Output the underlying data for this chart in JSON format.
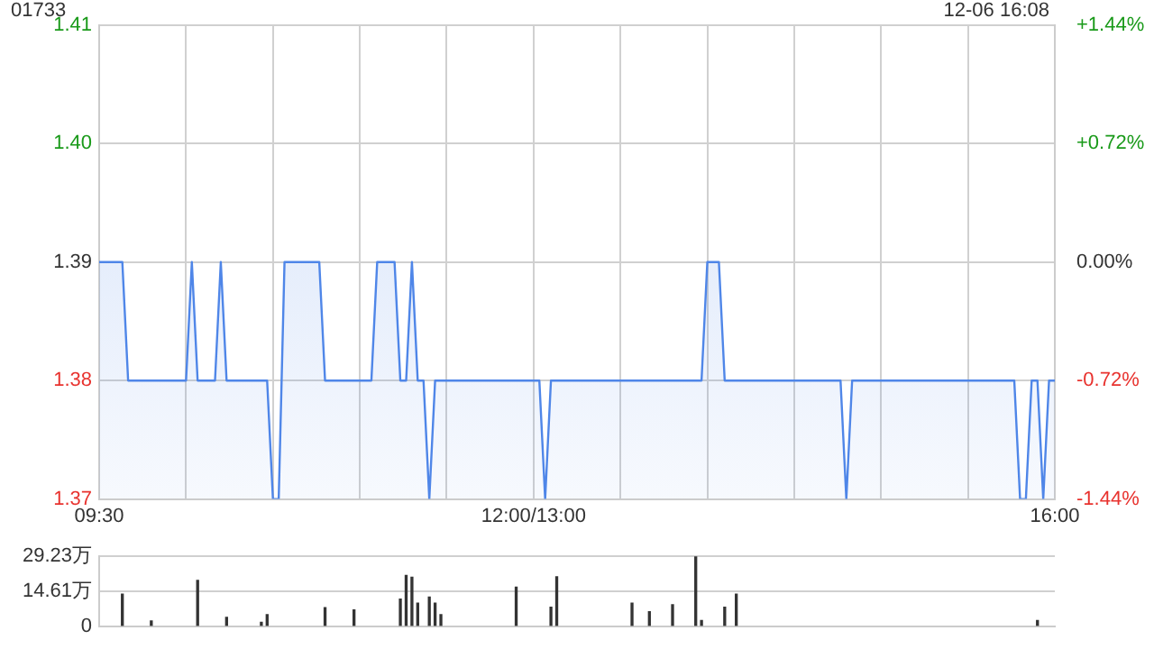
{
  "chart_data": [
    {
      "type": "area",
      "title": "01733",
      "subtitle": "12-06 16:08",
      "categories": [
        "09:30",
        null,
        null,
        null,
        null,
        null,
        null,
        null,
        null,
        null,
        null,
        null,
        null,
        null,
        null,
        null,
        null,
        null,
        null,
        null,
        null,
        null,
        null,
        null,
        null,
        null,
        null,
        null,
        null,
        null,
        null,
        null,
        null,
        null,
        null,
        null,
        null,
        null,
        null,
        null,
        null,
        null,
        null,
        null,
        null,
        null,
        null,
        null,
        null,
        null,
        null,
        null,
        null,
        null,
        null,
        null,
        null,
        null,
        null,
        null,
        null,
        null,
        null,
        null,
        null,
        null,
        null,
        null,
        null,
        null,
        null,
        null,
        null,
        null,
        null,
        "12:00/13:00",
        null,
        null,
        null,
        null,
        null,
        null,
        null,
        null,
        null,
        null,
        null,
        null,
        null,
        null,
        null,
        null,
        null,
        null,
        null,
        null,
        null,
        null,
        null,
        null,
        null,
        null,
        null,
        null,
        null,
        null,
        null,
        null,
        null,
        null,
        null,
        null,
        null,
        null,
        null,
        null,
        null,
        null,
        null,
        null,
        null,
        null,
        null,
        null,
        null,
        null,
        null,
        null,
        null,
        null,
        null,
        null,
        null,
        null,
        null,
        null,
        null,
        null,
        null,
        null,
        null,
        null,
        null,
        null,
        null,
        null,
        null,
        null,
        null,
        null,
        null,
        null,
        null,
        null,
        null,
        null,
        null,
        null,
        null,
        null,
        null,
        null,
        null,
        null,
        null,
        "16:00"
      ],
      "series": [
        {
          "color": "#4f86e8",
          "values": [
            1.39,
            1.39,
            1.39,
            1.39,
            1.39,
            1.38,
            1.38,
            1.38,
            1.38,
            1.38,
            1.38,
            1.38,
            1.38,
            1.38,
            1.38,
            1.38,
            1.39,
            1.38,
            1.38,
            1.38,
            1.38,
            1.39,
            1.38,
            1.38,
            1.38,
            1.38,
            1.38,
            1.38,
            1.38,
            1.38,
            1.37,
            1.37,
            1.39,
            1.39,
            1.39,
            1.39,
            1.39,
            1.39,
            1.39,
            1.38,
            1.38,
            1.38,
            1.38,
            1.38,
            1.38,
            1.38,
            1.38,
            1.38,
            1.39,
            1.39,
            1.39,
            1.39,
            1.38,
            1.38,
            1.39,
            1.38,
            1.38,
            1.37,
            1.38,
            1.38,
            1.38,
            1.38,
            1.38,
            1.38,
            1.38,
            1.38,
            1.38,
            1.38,
            1.38,
            1.38,
            1.38,
            1.38,
            1.38,
            1.38,
            1.38,
            1.38,
            1.38,
            1.37,
            1.38,
            1.38,
            1.38,
            1.38,
            1.38,
            1.38,
            1.38,
            1.38,
            1.38,
            1.38,
            1.38,
            1.38,
            1.38,
            1.38,
            1.38,
            1.38,
            1.38,
            1.38,
            1.38,
            1.38,
            1.38,
            1.38,
            1.38,
            1.38,
            1.38,
            1.38,
            1.38,
            1.39,
            1.39,
            1.39,
            1.38,
            1.38,
            1.38,
            1.38,
            1.38,
            1.38,
            1.38,
            1.38,
            1.38,
            1.38,
            1.38,
            1.38,
            1.38,
            1.38,
            1.38,
            1.38,
            1.38,
            1.38,
            1.38,
            1.38,
            1.38,
            1.37,
            1.38,
            1.38,
            1.38,
            1.38,
            1.38,
            1.38,
            1.38,
            1.38,
            1.38,
            1.38,
            1.38,
            1.38,
            1.38,
            1.38,
            1.38,
            1.38,
            1.38,
            1.38,
            1.38,
            1.38,
            1.38,
            1.38,
            1.38,
            1.38,
            1.38,
            1.38,
            1.38,
            1.38,
            1.38,
            1.37,
            1.37,
            1.38,
            1.38,
            1.37,
            1.38,
            1.38
          ]
        }
      ],
      "ylim": [
        1.37,
        1.41
      ],
      "yticks": [
        1.37,
        1.38,
        1.39,
        {
          "value": 1.4,
          "label": "1.40"
        },
        1.41
      ],
      "y2lim": [
        -1.44,
        1.44
      ],
      "y2ticks": [
        {
          "value": -1.44,
          "label": "-1.44%"
        },
        {
          "value": -0.72,
          "label": "-0.72%"
        },
        {
          "value": 0,
          "label": "0.00%"
        },
        {
          "value": 0.72,
          "label": "+0.72%"
        },
        {
          "value": 1.44,
          "label": "+1.44%"
        }
      ],
      "grid": true,
      "legend": false
    },
    {
      "type": "bar",
      "categories": [
        null,
        null,
        null,
        null,
        null,
        null,
        null,
        null,
        null,
        null,
        null,
        null,
        null,
        null,
        null,
        null,
        null,
        null,
        null,
        null,
        null,
        null,
        null,
        null,
        null,
        null,
        null,
        null,
        null,
        null,
        null,
        null,
        null,
        null,
        null,
        null,
        null,
        null,
        null,
        null,
        null,
        null,
        null,
        null,
        null,
        null,
        null,
        null,
        null,
        null,
        null,
        null,
        null,
        null,
        null,
        null,
        null,
        null,
        null,
        null,
        null,
        null,
        null,
        null,
        null,
        null,
        null,
        null,
        null,
        null,
        null,
        null,
        null,
        null,
        null,
        null,
        null,
        null,
        null,
        null,
        null,
        null,
        null,
        null,
        null,
        null,
        null,
        null,
        null,
        null,
        null,
        null,
        null,
        null,
        null,
        null,
        null,
        null,
        null,
        null,
        null,
        null,
        null,
        null,
        null,
        null,
        null,
        null,
        null,
        null,
        null,
        null,
        null,
        null,
        null,
        null,
        null,
        null,
        null,
        null,
        null,
        null,
        null,
        null,
        null,
        null,
        null,
        null,
        null,
        null,
        null,
        null,
        null,
        null,
        null,
        null,
        null,
        null,
        null,
        null,
        null,
        null,
        null,
        null,
        null,
        null,
        null,
        null,
        null,
        null,
        null,
        null,
        null,
        null,
        null,
        null,
        null,
        null,
        null,
        null,
        null,
        null,
        null,
        null,
        null,
        null
      ],
      "series": [
        {
          "color": "#333333",
          "values": [
            null,
            null,
            null,
            null,
            13.4,
            null,
            null,
            null,
            null,
            2.2,
            null,
            null,
            null,
            null,
            null,
            null,
            null,
            19.2,
            null,
            null,
            null,
            null,
            3.7,
            null,
            null,
            null,
            null,
            null,
            1.7,
            4.9,
            null,
            null,
            null,
            null,
            null,
            null,
            null,
            null,
            null,
            7.8,
            null,
            null,
            null,
            null,
            6.8,
            null,
            null,
            null,
            null,
            null,
            null,
            null,
            11.4,
            21.2,
            20.5,
            9.7,
            null,
            12.2,
            9.7,
            4.9,
            null,
            null,
            null,
            null,
            null,
            null,
            null,
            null,
            null,
            null,
            null,
            null,
            16.3,
            null,
            null,
            null,
            null,
            null,
            8.0,
            20.7,
            null,
            null,
            null,
            null,
            null,
            null,
            null,
            null,
            null,
            null,
            null,
            null,
            9.7,
            null,
            null,
            6.1,
            null,
            null,
            null,
            9.0,
            null,
            null,
            null,
            29.2,
            2.4,
            null,
            null,
            null,
            8.0,
            null,
            13.4,
            null,
            null,
            null,
            null,
            null,
            null,
            null,
            null,
            null,
            null,
            null,
            null,
            null,
            null,
            null,
            null,
            null,
            null,
            null,
            null,
            null,
            null,
            null,
            null,
            null,
            null,
            null,
            null,
            null,
            null,
            null,
            null,
            null,
            null,
            null,
            null,
            null,
            null,
            null,
            null,
            null,
            null,
            null,
            null,
            null,
            null,
            null,
            null,
            null,
            null,
            null,
            2.4,
            null,
            null,
            null
          ]
        }
      ],
      "ylim": [
        0,
        29.23
      ],
      "yticks": [
        0,
        {
          "value": 14.61,
          "label": "14.61万"
        },
        {
          "value": 29.23,
          "label": "29.23万"
        }
      ],
      "tick_labels": "y",
      "grid": "y",
      "legend": false
    }
  ]
}
